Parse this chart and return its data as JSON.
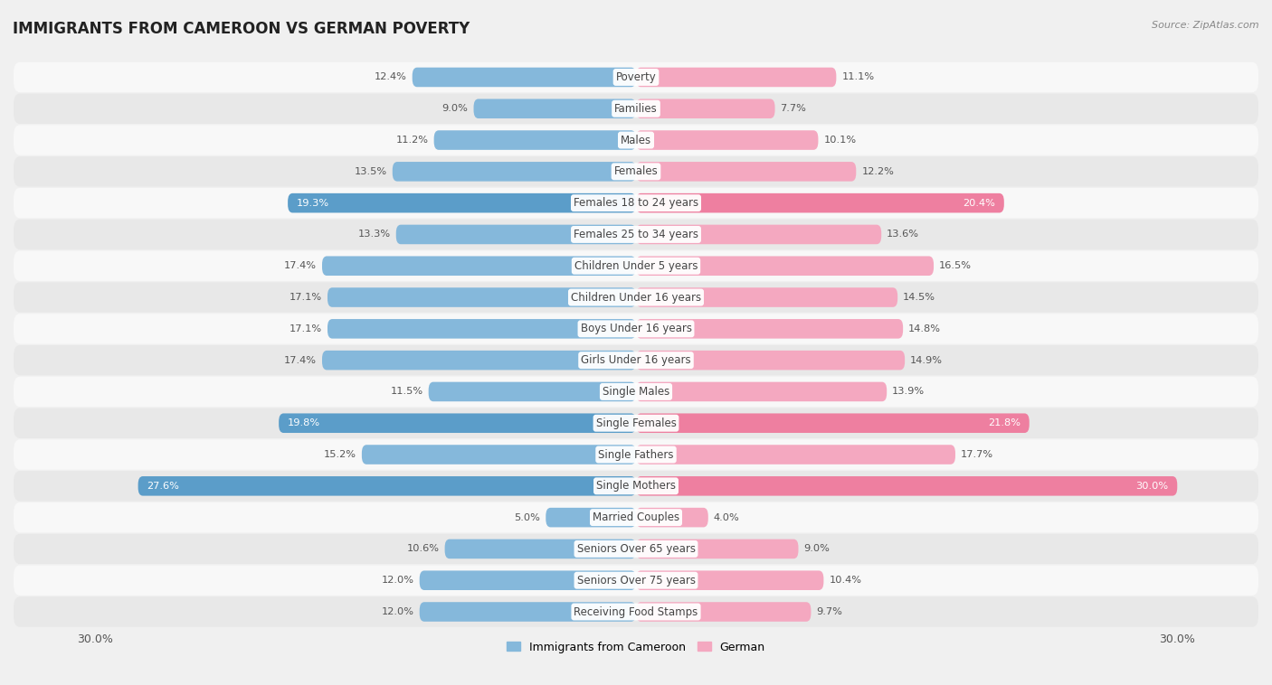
{
  "title": "IMMIGRANTS FROM CAMEROON VS GERMAN POVERTY",
  "source": "Source: ZipAtlas.com",
  "categories": [
    "Poverty",
    "Families",
    "Males",
    "Females",
    "Females 18 to 24 years",
    "Females 25 to 34 years",
    "Children Under 5 years",
    "Children Under 16 years",
    "Boys Under 16 years",
    "Girls Under 16 years",
    "Single Males",
    "Single Females",
    "Single Fathers",
    "Single Mothers",
    "Married Couples",
    "Seniors Over 65 years",
    "Seniors Over 75 years",
    "Receiving Food Stamps"
  ],
  "cameroon_values": [
    12.4,
    9.0,
    11.2,
    13.5,
    19.3,
    13.3,
    17.4,
    17.1,
    17.1,
    17.4,
    11.5,
    19.8,
    15.2,
    27.6,
    5.0,
    10.6,
    12.0,
    12.0
  ],
  "german_values": [
    11.1,
    7.7,
    10.1,
    12.2,
    20.4,
    13.6,
    16.5,
    14.5,
    14.8,
    14.9,
    13.9,
    21.8,
    17.7,
    30.0,
    4.0,
    9.0,
    10.4,
    9.7
  ],
  "cameroon_color": "#85b8db",
  "german_color": "#f4a8c0",
  "cameroon_highlight_color": "#5b9dc9",
  "german_highlight_color": "#ee7fa0",
  "axis_limit": 30.0,
  "bar_height": 0.62,
  "bg_color": "#f0f0f0",
  "row_color_light": "#f8f8f8",
  "row_color_dark": "#e8e8e8",
  "label_fontsize": 8.5,
  "title_fontsize": 12,
  "value_fontsize": 8.2,
  "highlight_threshold": 18.5
}
